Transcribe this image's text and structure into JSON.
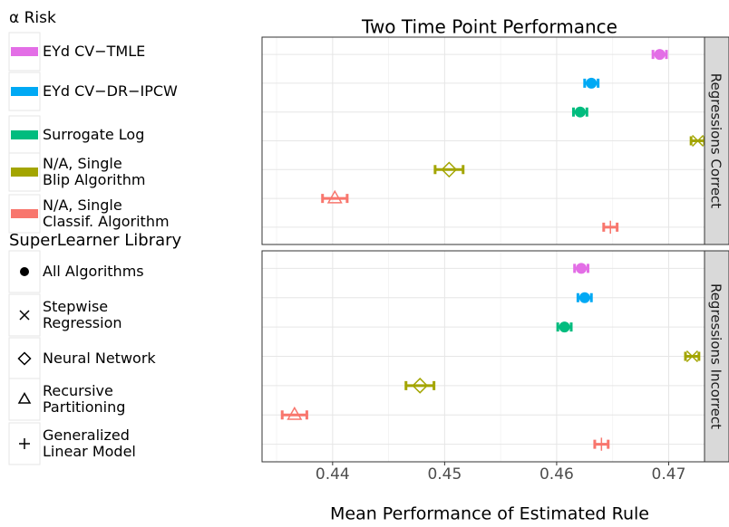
{
  "chart_data": {
    "type": "dot-errorbar",
    "title": "Two Time Point Performance",
    "xlabel": "Mean Performance of Estimated Rule",
    "xlim": [
      0.4337,
      0.4732
    ],
    "xticks": [
      0.44,
      0.45,
      0.46,
      0.47
    ],
    "grid": true,
    "risk_legend": {
      "title": "α  Risk",
      "items": [
        {
          "name": "EYd CV−TMLE",
          "color": "#e36ee6"
        },
        {
          "name": "EYd CV−DR−IPCW",
          "color": "#00a9f4"
        },
        {
          "name": "Surrogate Log",
          "color": "#00bc7e"
        },
        {
          "name": "N/A, Single\nBlip Algorithm",
          "color": "#a3a500"
        },
        {
          "name": "N/A, Single\nClassif. Algorithm",
          "color": "#f8766d"
        }
      ]
    },
    "library_legend": {
      "title": "SuperLearner Library",
      "items": [
        {
          "name": "All Algorithms",
          "shape": "circle"
        },
        {
          "name": "Stepwise\nRegression",
          "shape": "cross"
        },
        {
          "name": "Neural Network",
          "shape": "diamond"
        },
        {
          "name": "Recursive\nPartitioning",
          "shape": "triangle"
        },
        {
          "name": "Generalized\nLinear Model",
          "shape": "plus"
        }
      ]
    },
    "panels": [
      {
        "name": "Regressions Correct",
        "risk": [
          0,
          1,
          2,
          3,
          3,
          4,
          4
        ],
        "library": [
          0,
          0,
          0,
          1,
          2,
          3,
          4
        ],
        "values": [
          0.4692,
          0.4631,
          0.4621,
          0.4726,
          0.4504,
          0.4402,
          0.4648
        ],
        "errors": [
          0.0006,
          0.0006,
          0.0006,
          0.0006,
          0.00125,
          0.0011,
          0.0006
        ]
      },
      {
        "name": "Regressions Incorrect",
        "risk": [
          0,
          1,
          2,
          3,
          3,
          4,
          4
        ],
        "library": [
          0,
          0,
          0,
          1,
          2,
          3,
          4
        ],
        "values": [
          0.4622,
          0.4625,
          0.4607,
          0.4721,
          0.4478,
          0.4366,
          0.464
        ],
        "errors": [
          0.0006,
          0.0006,
          0.0006,
          0.0006,
          0.00125,
          0.0011,
          0.0006
        ]
      }
    ]
  }
}
